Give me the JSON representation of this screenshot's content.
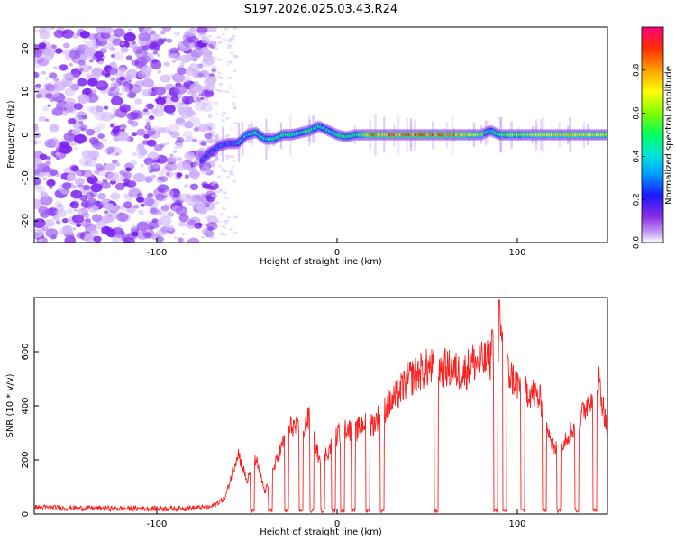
{
  "figure": {
    "title": "S197.2026.025.03.43.R24"
  },
  "chart_data": [
    {
      "type": "heatmap",
      "title": "S197.2026.025.03.43.R24",
      "xlabel": "Height of straight line (km)",
      "ylabel": "Frequency (Hz)",
      "xlim": [
        -168,
        150
      ],
      "ylim": [
        -25,
        25
      ],
      "xticks": [
        -100,
        0,
        100
      ],
      "xtick_labels": [
        "-100",
        "0",
        "100"
      ],
      "yticks": [
        -20,
        -10,
        0,
        10,
        20
      ],
      "ytick_labels": [
        "-20",
        "-10",
        "0",
        "10",
        "20"
      ],
      "noise_region_x": [
        -168,
        -68
      ],
      "ridge": {
        "x": [
          -75,
          -70,
          -65,
          -60,
          -55,
          -50,
          -45,
          -40,
          -35,
          -30,
          -25,
          -20,
          -15,
          -10,
          -5,
          0,
          5,
          10,
          20,
          40,
          60,
          80,
          85,
          90,
          100,
          120,
          140,
          150
        ],
        "freq": [
          -6,
          -4,
          -2.5,
          -2,
          -2,
          0,
          0.5,
          -1,
          -1,
          0,
          0,
          0.5,
          1,
          2,
          1,
          0,
          -0.5,
          0,
          0,
          0,
          0,
          0,
          1,
          0,
          0,
          0,
          0,
          0
        ],
        "amplitude": [
          0.3,
          0.25,
          0.3,
          0.3,
          0.35,
          0.45,
          0.5,
          0.45,
          0.55,
          0.5,
          0.55,
          0.5,
          0.6,
          0.45,
          0.5,
          0.55,
          0.5,
          0.5,
          0.9,
          0.95,
          0.9,
          0.7,
          0.4,
          0.6,
          0.65,
          0.75,
          0.8,
          0.6
        ]
      },
      "colorbar": {
        "label": "Normalized spectral amplitude",
        "range": [
          0.0,
          1.0
        ],
        "ticks": [
          0.0,
          0.2,
          0.4,
          0.6,
          0.8
        ],
        "tick_labels": [
          "0.0",
          "0.2",
          "0.4",
          "0.6",
          "0.8"
        ]
      }
    },
    {
      "type": "line",
      "xlabel": "Height of straight line (km)",
      "ylabel": "SNR (10 * v/v)",
      "xlim": [
        -168,
        150
      ],
      "ylim": [
        0,
        800
      ],
      "xticks": [
        -100,
        0,
        100
      ],
      "xtick_labels": [
        "-100",
        "0",
        "100"
      ],
      "yticks": [
        0,
        200,
        400,
        600
      ],
      "ytick_labels": [
        "0",
        "200",
        "400",
        "600"
      ],
      "color": "#ff2020",
      "series": [
        {
          "name": "SNR",
          "x": [
            -168,
            -150,
            -120,
            -90,
            -70,
            -62,
            -55,
            -50,
            -45,
            -40,
            -35,
            -30,
            -25,
            -20,
            -15,
            -10,
            -5,
            0,
            5,
            10,
            15,
            20,
            25,
            30,
            40,
            50,
            60,
            70,
            75,
            80,
            85,
            90,
            95,
            100,
            105,
            110,
            115,
            120,
            125,
            130,
            135,
            140,
            145,
            150
          ],
          "y": [
            25,
            22,
            20,
            20,
            25,
            60,
            230,
            120,
            200,
            80,
            170,
            260,
            330,
            300,
            360,
            200,
            230,
            290,
            320,
            300,
            340,
            330,
            380,
            410,
            500,
            540,
            540,
            520,
            560,
            560,
            570,
            650,
            520,
            480,
            460,
            440,
            400,
            230,
            270,
            310,
            350,
            430,
            500,
            300
          ],
          "dropouts": [
            -47,
            -37,
            -28,
            -20,
            -14,
            -8,
            -2,
            3,
            9,
            17,
            25,
            55,
            88,
            93,
            103,
            115,
            123,
            133,
            143
          ]
        }
      ]
    }
  ]
}
